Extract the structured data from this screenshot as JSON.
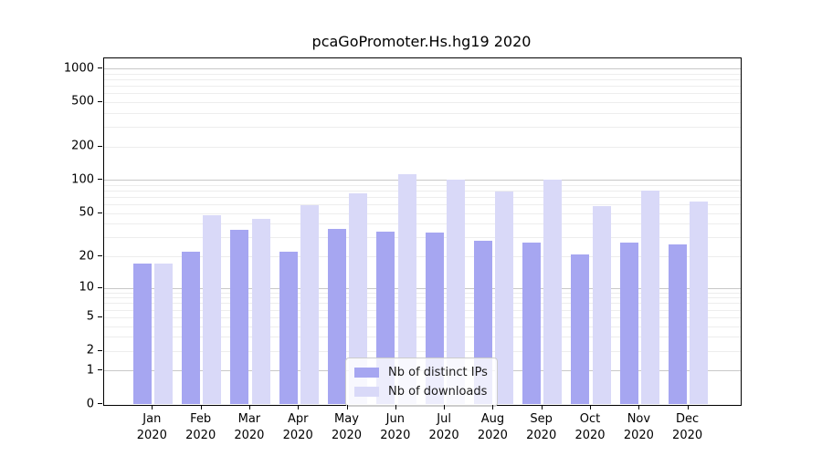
{
  "chart_data": {
    "type": "bar",
    "title": "pcaGoPromoter.Hs.hg19 2020",
    "categories": [
      "Jan",
      "Feb",
      "Mar",
      "Apr",
      "May",
      "Jun",
      "Jul",
      "Aug",
      "Sep",
      "Oct",
      "Nov",
      "Dec"
    ],
    "year": "2020",
    "series": [
      {
        "name": "Nb of distinct IPs",
        "color": "#a6a6f1",
        "values": [
          17,
          22,
          35,
          22,
          36,
          34,
          33,
          28,
          27,
          21,
          27,
          26
        ]
      },
      {
        "name": "Nb of downloads",
        "color": "#d9d9f8",
        "values": [
          17,
          48,
          44,
          59,
          75,
          113,
          101,
          78,
          101,
          58,
          80,
          64
        ]
      }
    ],
    "xlabel": "",
    "ylabel": "",
    "y_scale": "log1p",
    "y_ticks": [
      0,
      1,
      2,
      5,
      10,
      20,
      50,
      100,
      200,
      500,
      1000
    ],
    "ylim": [
      0,
      1200
    ],
    "grid": true,
    "grid_major_values": [
      1,
      10,
      100,
      1000
    ],
    "legend_position": "bottom-center",
    "colors": {
      "major_gridline": "#c8c8c8",
      "minor_gridline": "#ededed",
      "axis": "#000000",
      "legend_border": "#cccccc"
    }
  }
}
